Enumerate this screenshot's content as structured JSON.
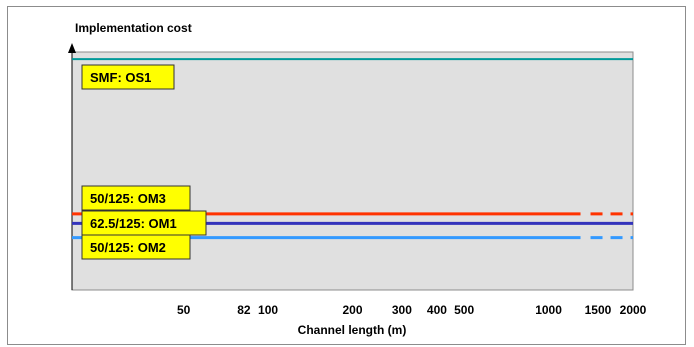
{
  "chart_data": {
    "type": "line",
    "title": "",
    "ylabel": "Implementation cost",
    "xlabel": "Channel length (m)",
    "x_scale": "log",
    "xlim": [
      20,
      2000
    ],
    "x_ticks": [
      {
        "value": 50,
        "label": "50"
      },
      {
        "value": 82,
        "label": "82"
      },
      {
        "value": 100,
        "label": "100"
      },
      {
        "value": 200,
        "label": "200"
      },
      {
        "value": 300,
        "label": "300"
      },
      {
        "value": 400,
        "label": "400"
      },
      {
        "value": 500,
        "label": "500"
      },
      {
        "value": 1000,
        "label": "1000"
      },
      {
        "value": 1500,
        "label": "1500"
      },
      {
        "value": 2000,
        "label": "2000"
      }
    ],
    "grid": false,
    "y_numeric": false,
    "series": [
      {
        "name": "SMF: OS1",
        "color": "#009999",
        "level": 0.97,
        "solid_to": 2000,
        "dashed_to": null
      },
      {
        "name": "50/125: OM3",
        "color": "#ff3300",
        "level": 0.32,
        "solid_to": 1300,
        "dashed_to": 2000
      },
      {
        "name": "62.5/125: OM1",
        "color": "#3333bb",
        "level": 0.28,
        "solid_to": 2000,
        "dashed_to": null
      },
      {
        "name": "50/125: OM2",
        "color": "#3399ff",
        "level": 0.22,
        "solid_to": 1300,
        "dashed_to": 2000
      }
    ]
  },
  "colors": {
    "plot_background": "#e0e0e0",
    "label_fill": "#ffff00"
  }
}
